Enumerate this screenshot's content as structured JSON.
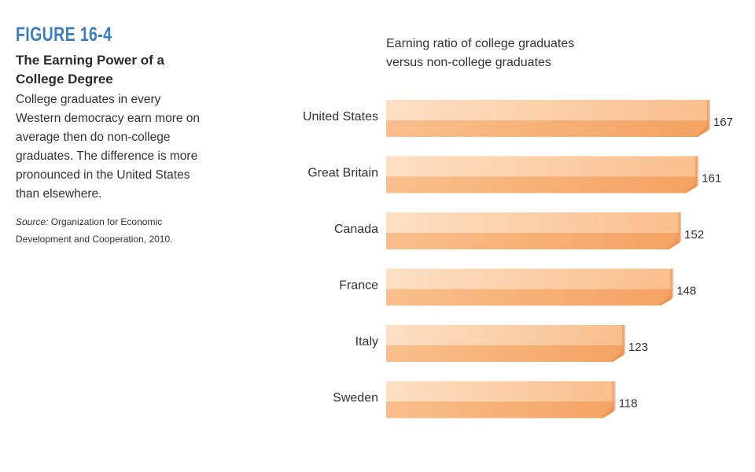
{
  "figure": {
    "label": "FIGURE 16-4",
    "title": "The Earning Power of a College Degree",
    "description": "College graduates in every Western democracy earn more on average then do non-college graduates. The difference is more pronounced in the United States than elsewhere.",
    "source_label": "Source:",
    "source_text": "Organization for Economic Development and Cooperation, 2010."
  },
  "colors": {
    "accent": "#3a7dc0",
    "bar_light": "#fde0c4",
    "bar_mid": "#f9bf8c",
    "bar_dark": "#f4a261",
    "bar_shade": "#e8894a"
  },
  "chart_data": {
    "type": "bar",
    "orientation": "horizontal",
    "title": "Earning ratio of college graduates versus non-college graduates",
    "title_lines": [
      "Earning ratio of college graduates",
      "versus non-college graduates"
    ],
    "categories": [
      "United States",
      "Great Britain",
      "Canada",
      "France",
      "Italy",
      "Sweden"
    ],
    "values": [
      167,
      161,
      152,
      148,
      123,
      118
    ],
    "data_labels": [
      "167",
      "161",
      "152",
      "148",
      "123",
      "118"
    ],
    "xlabel": "",
    "ylabel": "",
    "grid": false,
    "legend": "none"
  }
}
